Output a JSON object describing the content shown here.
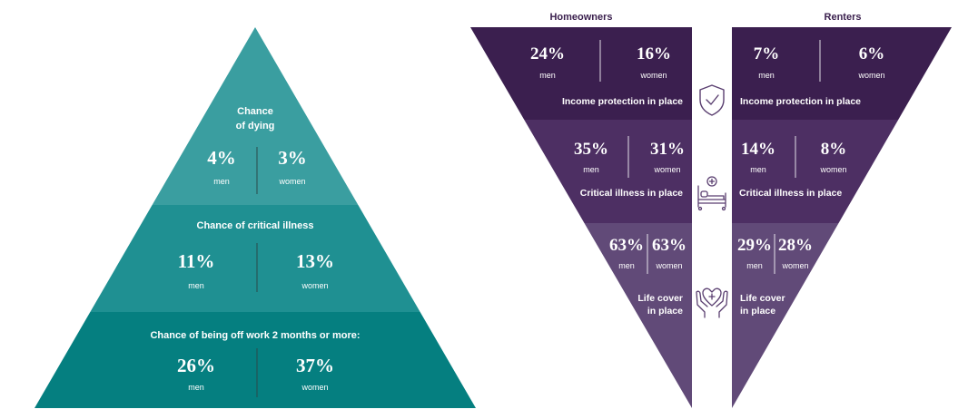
{
  "pyramid": {
    "tiers": [
      {
        "label_lines": [
          "Chance",
          "of dying"
        ],
        "men": "4%",
        "women": "3%",
        "men_label": "men",
        "women_label": "women"
      },
      {
        "label_lines": [
          "Chance of critical illness"
        ],
        "men": "11%",
        "women": "13%",
        "men_label": "men",
        "women_label": "women"
      },
      {
        "label_lines": [
          "Chance of being off work 2 months or more:"
        ],
        "men": "26%",
        "women": "37%",
        "men_label": "men",
        "women_label": "women"
      }
    ],
    "colors": [
      "#3a9ea0",
      "#1f9092",
      "#057f80"
    ]
  },
  "funnels": {
    "homeowners": {
      "title": "Homeowners",
      "tiers": [
        {
          "men": "24%",
          "women": "16%",
          "men_label": "men",
          "women_label": "women",
          "label_lines": [
            "Income protection in place"
          ]
        },
        {
          "men": "35%",
          "women": "31%",
          "men_label": "men",
          "women_label": "women",
          "label_lines": [
            "Critical illness in place"
          ]
        },
        {
          "men": "63%",
          "women": "63%",
          "men_label": "men",
          "women_label": "women",
          "label_lines": [
            "Life cover",
            "in place"
          ]
        }
      ]
    },
    "renters": {
      "title": "Renters",
      "tiers": [
        {
          "men": "7%",
          "women": "6%",
          "men_label": "men",
          "women_label": "women",
          "label_lines": [
            "Income protection in place"
          ]
        },
        {
          "men": "14%",
          "women": "8%",
          "men_label": "men",
          "women_label": "women",
          "label_lines": [
            "Critical illness in place"
          ]
        },
        {
          "men": "29%",
          "women": "28%",
          "men_label": "men",
          "women_label": "women",
          "label_lines": [
            "Life cover",
            "in place"
          ]
        }
      ]
    },
    "colors": [
      "#3b1f4f",
      "#4d2f63",
      "#614a78"
    ],
    "icons": [
      "shield-check-icon",
      "hospital-bed-icon",
      "hands-heart-icon"
    ]
  }
}
